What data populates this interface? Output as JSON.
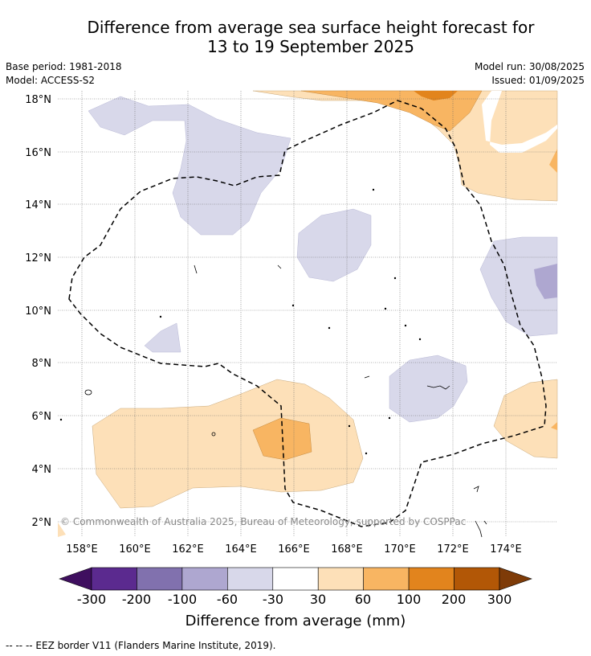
{
  "title": {
    "line1": "Difference from average sea surface height forecast for",
    "line2": "13 to 19 September 2025"
  },
  "meta": {
    "base_period": "Base period: 1981-2018",
    "model": "Model: ACCESS-S2",
    "model_run": "Model run: 30/08/2025",
    "issued": "Issued: 01/09/2025"
  },
  "map": {
    "lat_labels": [
      "18°N",
      "16°N",
      "14°N",
      "12°N",
      "10°N",
      "8°N",
      "6°N",
      "4°N",
      "2°N"
    ],
    "lon_labels": [
      "158°E",
      "160°E",
      "162°E",
      "164°E",
      "166°E",
      "168°E",
      "170°E",
      "172°E",
      "174°E"
    ],
    "copyright": "© Commonwealth of Australia 2025, Bureau of Meteorology, supported by COSPPac"
  },
  "colorbar": {
    "tick_labels": [
      "-300",
      "-200",
      "-100",
      "-60",
      "-30",
      "30",
      "60",
      "100",
      "200",
      "300"
    ],
    "colors": [
      "#3f0f5f",
      "#5b2a8f",
      "#8171ae",
      "#aea7d0",
      "#d8d8ea",
      "#ffffff",
      "#fde0b8",
      "#f8b562",
      "#e2841d",
      "#b25706",
      "#7e3b08"
    ],
    "label": "Difference from average (mm)"
  },
  "footer": "--  --  -- EEZ border V11 (Flanders Marine Institute, 2019)."
}
